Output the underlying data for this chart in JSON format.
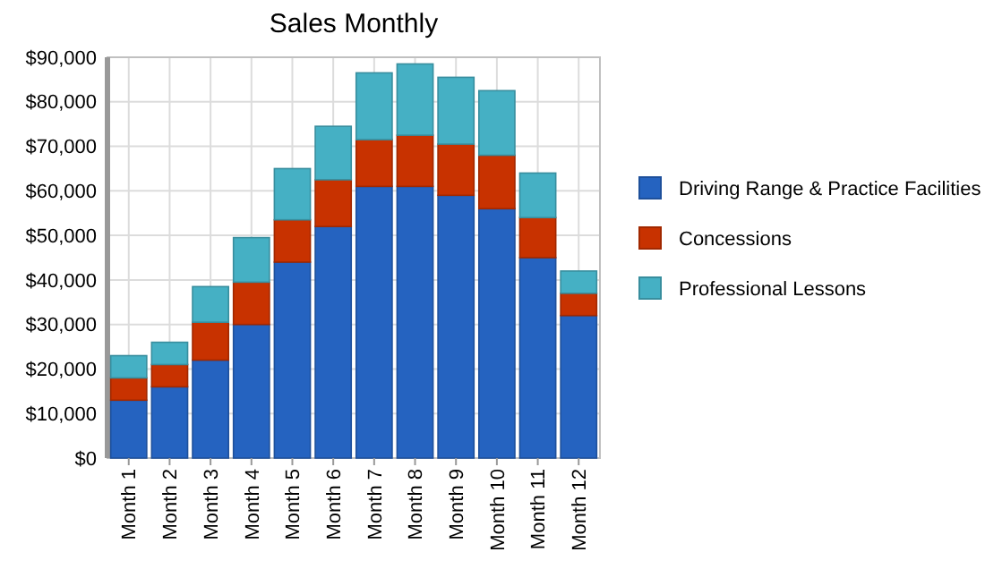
{
  "chart_data": {
    "type": "bar",
    "title": "Sales Monthly",
    "stacked": true,
    "categories": [
      "Month 1",
      "Month 2",
      "Month 3",
      "Month 4",
      "Month 5",
      "Month 6",
      "Month 7",
      "Month 8",
      "Month 9",
      "Month 10",
      "Month 11",
      "Month 12"
    ],
    "series": [
      {
        "name": "Driving Range & Practice Facilities",
        "color": "#2563c0",
        "values": [
          13000,
          16000,
          22000,
          30000,
          44000,
          52000,
          61000,
          61000,
          59000,
          56000,
          45000,
          32000
        ]
      },
      {
        "name": "Concessions",
        "color": "#c83200",
        "values": [
          5000,
          5000,
          8500,
          9500,
          9500,
          10500,
          10500,
          11500,
          11500,
          12000,
          9000,
          5000
        ]
      },
      {
        "name": "Professional Lessons",
        "color": "#45b0c4",
        "values": [
          5000,
          5000,
          8000,
          10000,
          11500,
          12000,
          15000,
          16000,
          15000,
          14500,
          10000,
          5000
        ]
      }
    ],
    "ylim": [
      0,
      90000
    ],
    "yticks": [
      {
        "value": 0,
        "label": "$0"
      },
      {
        "value": 10000,
        "label": "$10,000"
      },
      {
        "value": 20000,
        "label": "$20,000"
      },
      {
        "value": 30000,
        "label": "$30,000"
      },
      {
        "value": 40000,
        "label": "$40,000"
      },
      {
        "value": 50000,
        "label": "$50,000"
      },
      {
        "value": 60000,
        "label": "$60,000"
      },
      {
        "value": 70000,
        "label": "$70,000"
      },
      {
        "value": 80000,
        "label": "$80,000"
      },
      {
        "value": 90000,
        "label": "$90,000"
      }
    ],
    "grid": true,
    "legend": "right"
  }
}
